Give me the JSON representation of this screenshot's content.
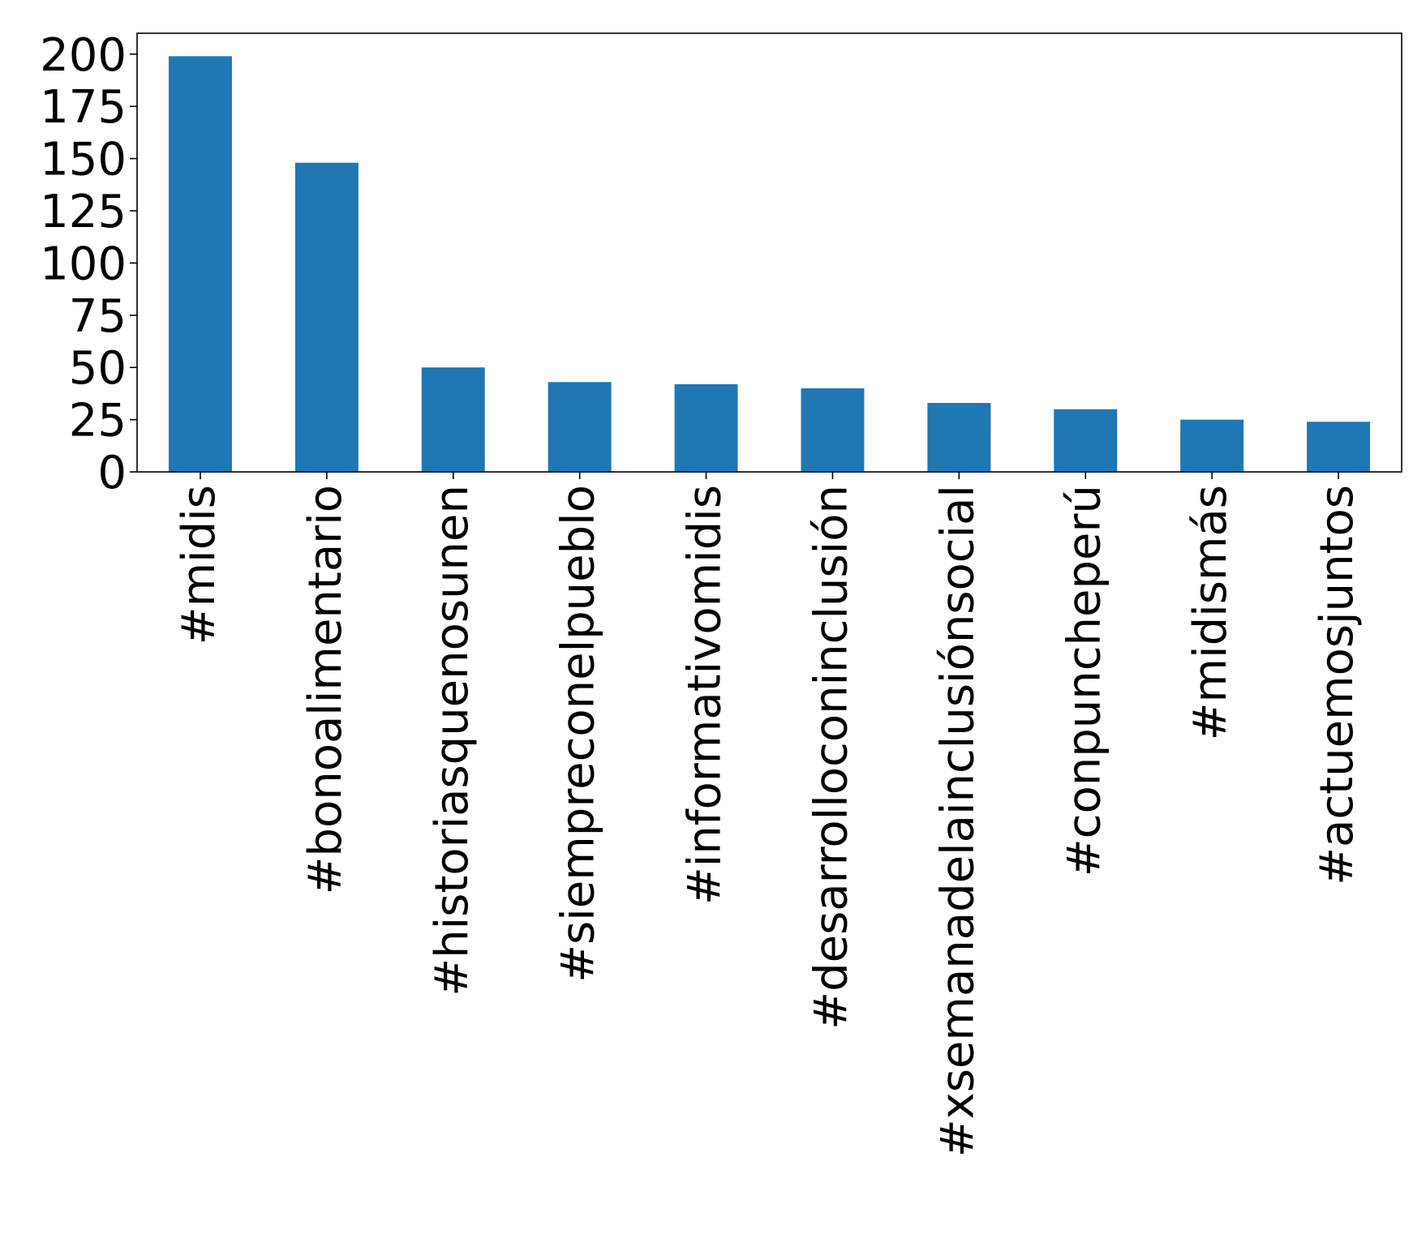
{
  "chart_data": {
    "type": "bar",
    "title": "",
    "xlabel": "",
    "ylabel": "",
    "categories": [
      "#midis",
      "#bonoalimentario",
      "#historiasquenosunen",
      "#siempreconelpueblo",
      "#informativomidis",
      "#desarrolloconinclusión",
      "#xsemanadelainclusiónsocial",
      "#conpuncheperú",
      "#midismás",
      "#actuemosjuntos"
    ],
    "values": [
      199,
      148,
      50,
      43,
      42,
      40,
      33,
      30,
      25,
      24
    ],
    "ylim": [
      0,
      210
    ],
    "yticks": [
      0,
      25,
      50,
      75,
      100,
      125,
      150,
      175,
      200
    ],
    "ytick_labels": [
      "0",
      "25",
      "50",
      "75",
      "100",
      "125",
      "150",
      "175",
      "200"
    ],
    "bar_color": "#1f77b4",
    "grid": false,
    "legend": "none"
  }
}
